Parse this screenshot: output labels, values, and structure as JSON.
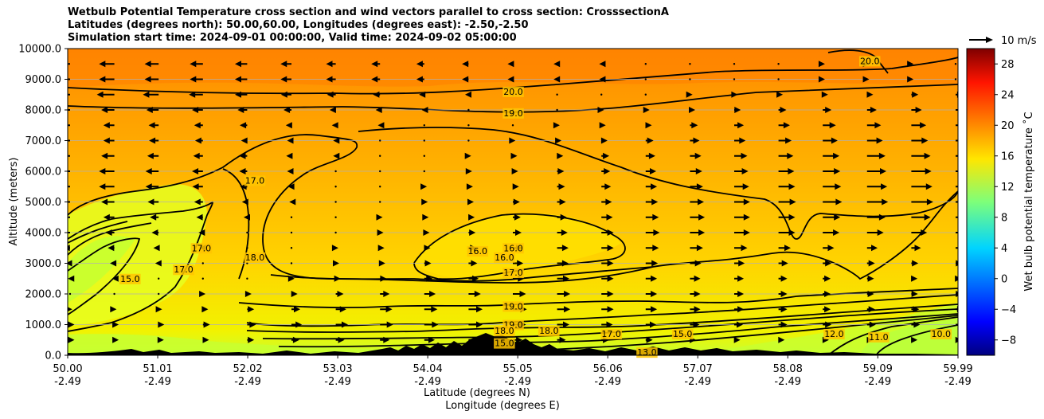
{
  "title": {
    "line1": "Wetbulb Potential Temperature cross section and wind vectors parallel to cross section: CrosssectionA",
    "line2": "Latitudes (degrees north): 50.00,60.00, Longitudes (degrees east): -2.50,-2.50",
    "line3": "Simulation start time: 2024-09-01 00:00:00, Valid time: 2024-09-02 05:00:00"
  },
  "chart_data": {
    "type": "contour",
    "xlabel": "Latitude (degrees N)",
    "xlabel2": "Longitude (degrees E)",
    "ylabel": "Altitude (meters)",
    "xlim": [
      50.0,
      59.99
    ],
    "ylim": [
      0,
      10000
    ],
    "xticks": [
      {
        "lat": "50.00",
        "lon": "-2.49",
        "v": 50.0
      },
      {
        "lat": "51.01",
        "lon": "-2.49",
        "v": 51.01
      },
      {
        "lat": "52.02",
        "lon": "-2.49",
        "v": 52.02
      },
      {
        "lat": "53.03",
        "lon": "-2.49",
        "v": 53.03
      },
      {
        "lat": "54.04",
        "lon": "-2.49",
        "v": 54.04
      },
      {
        "lat": "55.05",
        "lon": "-2.49",
        "v": 55.05
      },
      {
        "lat": "56.06",
        "lon": "-2.49",
        "v": 56.06
      },
      {
        "lat": "57.07",
        "lon": "-2.49",
        "v": 57.07
      },
      {
        "lat": "58.08",
        "lon": "-2.49",
        "v": 58.08
      },
      {
        "lat": "59.09",
        "lon": "-2.49",
        "v": 59.09
      },
      {
        "lat": "59.99",
        "lon": "-2.49",
        "v": 59.99
      }
    ],
    "yticks": [
      {
        "label": "0.0",
        "v": 0
      },
      {
        "label": "1000.0",
        "v": 1000
      },
      {
        "label": "2000.0",
        "v": 2000
      },
      {
        "label": "3000.0",
        "v": 3000
      },
      {
        "label": "4000.0",
        "v": 4000
      },
      {
        "label": "5000.0",
        "v": 5000
      },
      {
        "label": "6000.0",
        "v": 6000
      },
      {
        "label": "7000.0",
        "v": 7000
      },
      {
        "label": "8000.0",
        "v": 8000
      },
      {
        "label": "9000.0",
        "v": 9000
      },
      {
        "label": "10000.0",
        "v": 10000
      }
    ],
    "colorbar": {
      "label": "Wet bulb potential temperature ˚C",
      "range": [
        -10,
        30
      ],
      "ticks": [
        {
          "label": "−8",
          "v": -8
        },
        {
          "label": "−4",
          "v": -4
        },
        {
          "label": "0",
          "v": 0
        },
        {
          "label": "4",
          "v": 4
        },
        {
          "label": "8",
          "v": 8
        },
        {
          "label": "12",
          "v": 12
        },
        {
          "label": "16",
          "v": 16
        },
        {
          "label": "20",
          "v": 20
        },
        {
          "label": "24",
          "v": 24
        },
        {
          "label": "28",
          "v": 28
        }
      ]
    },
    "quiver_key": {
      "label": "10 m/s",
      "speed": 10
    },
    "wind_rows": [
      {
        "alt": 9500,
        "u": [
          -3.5,
          -3.5,
          -3.2,
          -3.0,
          -2.8,
          -2.5,
          -2.2,
          -2.0,
          -1.8,
          -1.5,
          -1.2,
          -0.8,
          -0.5,
          -0.3,
          -0.1,
          0.1,
          0.3,
          0.5,
          0.5,
          0.5,
          0.2
        ]
      },
      {
        "alt": 9000,
        "u": [
          -3.5,
          -3.5,
          -3.2,
          -3.0,
          -2.8,
          -2.5,
          -2.2,
          -2.0,
          -1.8,
          -1.5,
          -1.2,
          -0.8,
          -0.5,
          -0.3,
          -0.1,
          0.1,
          0.3,
          0.5,
          0.5,
          0.5,
          0.2
        ]
      },
      {
        "alt": 8500,
        "u": [
          -4.0,
          -4.0,
          -3.6,
          -3.2,
          -2.8,
          -2.4,
          -2.0,
          -1.6,
          -1.2,
          -0.8,
          -0.4,
          -0.1,
          0.2,
          0.4,
          0.6,
          0.8,
          1.0,
          1.2,
          1.4,
          1.6,
          1.8
        ]
      },
      {
        "alt": 8000,
        "u": [
          -3.0,
          -3.0,
          -2.8,
          -2.5,
          -2.2,
          -1.8,
          -1.4,
          -1.0,
          -0.6,
          -0.2,
          0.0,
          0.3,
          0.6,
          0.9,
          1.2,
          1.5,
          1.8,
          2.0,
          2.2,
          2.4,
          2.5
        ]
      },
      {
        "alt": 7500,
        "u": [
          -2.5,
          -2.5,
          -2.3,
          -2.0,
          -1.7,
          -1.3,
          -0.9,
          -0.5,
          -0.2,
          0.0,
          0.3,
          0.6,
          1.0,
          1.4,
          1.8,
          2.2,
          2.6,
          3.0,
          3.2,
          3.4,
          3.5
        ]
      },
      {
        "alt": 7000,
        "u": [
          -2.5,
          -2.5,
          -2.2,
          -1.8,
          -1.4,
          -1.0,
          -0.6,
          -0.3,
          0.0,
          0.3,
          0.6,
          1.0,
          1.4,
          1.8,
          2.2,
          2.6,
          3.0,
          3.4,
          3.6,
          3.8,
          4.0
        ]
      },
      {
        "alt": 6500,
        "u": [
          -3.0,
          -3.0,
          -2.6,
          -2.2,
          -1.8,
          -1.2,
          -0.6,
          -0.2,
          0.2,
          0.6,
          1.0,
          1.4,
          1.8,
          2.2,
          2.6,
          3.0,
          3.4,
          3.8,
          4.2,
          4.4,
          4.5
        ]
      },
      {
        "alt": 6000,
        "u": [
          -3.5,
          -3.5,
          -3.0,
          -2.5,
          -1.8,
          -1.0,
          -0.4,
          0.0,
          0.4,
          0.8,
          1.2,
          1.6,
          2.0,
          2.4,
          2.8,
          3.2,
          3.6,
          4.0,
          4.4,
          4.6,
          4.8
        ]
      },
      {
        "alt": 5500,
        "u": [
          -3.5,
          -3.5,
          -3.0,
          -2.4,
          -1.6,
          -0.8,
          -0.2,
          0.2,
          0.6,
          1.0,
          1.4,
          1.8,
          2.2,
          2.6,
          3.0,
          3.4,
          3.8,
          4.2,
          4.6,
          4.8,
          5.0
        ]
      },
      {
        "alt": 5000,
        "u": [
          -3.0,
          -3.0,
          -2.5,
          -2.0,
          -1.2,
          -0.5,
          0.0,
          0.4,
          0.8,
          1.2,
          1.6,
          2.0,
          2.4,
          2.8,
          3.2,
          3.6,
          4.0,
          4.4,
          4.8,
          5.0,
          5.0
        ]
      },
      {
        "alt": 4500,
        "u": [
          -2.5,
          -2.5,
          -2.0,
          -1.5,
          -0.8,
          -0.2,
          0.2,
          0.6,
          1.0,
          1.4,
          1.8,
          2.2,
          2.6,
          3.0,
          3.4,
          3.6,
          3.8,
          4.0,
          4.2,
          4.4,
          4.5
        ]
      },
      {
        "alt": 4000,
        "u": [
          -2.0,
          -2.0,
          -1.6,
          -1.0,
          -0.4,
          0.0,
          0.4,
          0.8,
          1.2,
          1.6,
          2.0,
          2.4,
          2.8,
          3.2,
          3.4,
          3.6,
          3.8,
          3.8,
          3.8,
          3.6,
          3.5
        ]
      },
      {
        "alt": 3500,
        "u": [
          -1.5,
          -1.5,
          -1.2,
          -0.8,
          -0.2,
          0.2,
          0.6,
          1.0,
          1.4,
          1.8,
          2.2,
          2.6,
          2.8,
          3.0,
          3.0,
          3.0,
          2.8,
          2.6,
          2.4,
          2.2,
          2.0
        ]
      },
      {
        "alt": 3000,
        "u": [
          -1.0,
          -1.0,
          -0.8,
          -0.4,
          0.0,
          0.4,
          0.8,
          1.2,
          1.6,
          2.0,
          2.4,
          2.6,
          2.8,
          2.8,
          2.6,
          2.4,
          2.2,
          2.0,
          1.8,
          1.6,
          1.5
        ]
      },
      {
        "alt": 2500,
        "u": [
          -0.5,
          -0.5,
          -0.3,
          0.0,
          0.3,
          0.7,
          1.1,
          1.5,
          1.9,
          2.3,
          2.6,
          2.8,
          2.8,
          2.6,
          2.4,
          2.2,
          2.0,
          1.8,
          1.6,
          1.4,
          1.3
        ]
      },
      {
        "alt": 2000,
        "u": [
          0.0,
          0.0,
          0.3,
          0.6,
          1.0,
          1.4,
          1.8,
          2.2,
          2.6,
          2.8,
          3.0,
          3.0,
          2.8,
          2.6,
          2.4,
          2.2,
          2.0,
          1.8,
          1.6,
          1.5,
          1.5
        ]
      },
      {
        "alt": 1500,
        "u": [
          0.5,
          0.5,
          0.8,
          1.2,
          1.6,
          2.0,
          2.4,
          2.8,
          3.0,
          3.2,
          3.2,
          3.0,
          2.8,
          2.6,
          2.4,
          2.2,
          2.0,
          1.8,
          1.8,
          1.8,
          1.8
        ]
      },
      {
        "alt": 1000,
        "u": [
          1.0,
          1.0,
          1.3,
          1.6,
          2.0,
          2.4,
          2.8,
          3.0,
          3.2,
          3.2,
          3.0,
          2.8,
          2.6,
          2.4,
          2.2,
          2.0,
          2.0,
          2.0,
          2.0,
          2.0,
          2.0
        ]
      },
      {
        "alt": 500,
        "u": [
          1.0,
          1.0,
          1.2,
          1.4,
          1.6,
          1.8,
          2.0,
          2.2,
          2.4,
          2.4,
          2.2,
          2.0,
          1.8,
          1.6,
          1.4,
          1.4,
          1.4,
          1.4,
          1.4,
          1.4,
          1.4
        ]
      }
    ],
    "contour_labels": [
      {
        "text": "20.0",
        "x": 55.0,
        "y": 8600
      },
      {
        "text": "19.0",
        "x": 55.0,
        "y": 7900
      },
      {
        "text": "20.0",
        "x": 59.0,
        "y": 9600
      },
      {
        "text": "17.0",
        "x": 52.1,
        "y": 5700
      },
      {
        "text": "17.0",
        "x": 51.5,
        "y": 3500
      },
      {
        "text": "17.0",
        "x": 51.3,
        "y": 2800
      },
      {
        "text": "15.0",
        "x": 50.7,
        "y": 2500
      },
      {
        "text": "18.0",
        "x": 52.1,
        "y": 3200
      },
      {
        "text": "16.0",
        "x": 54.6,
        "y": 3400
      },
      {
        "text": "16.0",
        "x": 54.9,
        "y": 3200
      },
      {
        "text": "16.0",
        "x": 55.0,
        "y": 3500
      },
      {
        "text": "17.0",
        "x": 55.0,
        "y": 2700
      },
      {
        "text": "19.0",
        "x": 55.0,
        "y": 1600
      },
      {
        "text": "19.0",
        "x": 55.0,
        "y": 1000
      },
      {
        "text": "18.0",
        "x": 54.9,
        "y": 800
      },
      {
        "text": "18.0",
        "x": 55.4,
        "y": 800
      },
      {
        "text": "17.0",
        "x": 56.1,
        "y": 700
      },
      {
        "text": "15.0",
        "x": 56.9,
        "y": 700
      },
      {
        "text": "13.0",
        "x": 56.5,
        "y": 100
      },
      {
        "text": "12.0",
        "x": 58.6,
        "y": 700
      },
      {
        "text": "11.0",
        "x": 59.1,
        "y": 600
      },
      {
        "text": "10.0",
        "x": 59.8,
        "y": 700
      },
      {
        "text": "15.0",
        "x": 54.9,
        "y": 400
      }
    ]
  }
}
